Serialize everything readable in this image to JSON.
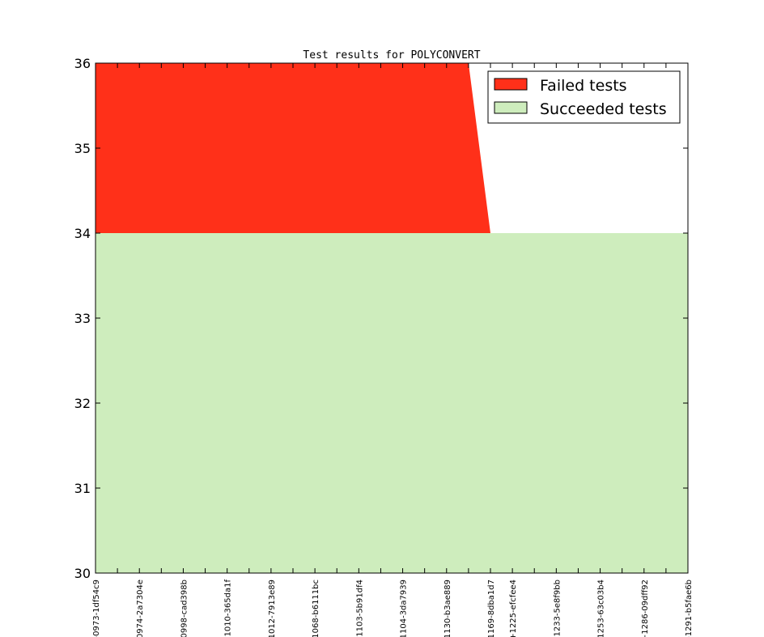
{
  "chart_data": {
    "type": "area",
    "title": "Test results for POLYCONVERT",
    "xlabel": "",
    "ylabel": "",
    "ylim": [
      30,
      36
    ],
    "yticks": [
      30,
      31,
      32,
      33,
      34,
      35,
      36
    ],
    "grid": false,
    "legend_position": "top-right",
    "categories": [
      "-0973-1df54c9",
      "",
      "0974-2a7304e",
      "",
      "0998-cad398b",
      "",
      "-1010-365da1f",
      "",
      "1012-7913e89",
      "",
      "1068-b6111bc",
      "",
      "-1103-5b91df4",
      "",
      "1104-3da7939",
      "",
      "1130-b3ae889",
      "",
      "1169-8dba1d7",
      "+1225-efcfee4",
      "",
      "-1233-5e8f9bb",
      "",
      "1253-63c03b4",
      "",
      "+1286-09dff92",
      "",
      "-1291-b5fae6b"
    ],
    "series": [
      {
        "name": "Failed tests",
        "color": "#ff3019",
        "values": [
          2,
          2,
          2,
          2,
          2,
          2,
          2,
          2,
          2,
          2,
          2,
          2,
          2,
          2,
          2,
          2,
          2,
          2,
          0,
          0,
          0,
          0,
          0,
          0,
          0,
          0,
          0,
          0
        ]
      },
      {
        "name": "Succeeded tests",
        "color": "#ceedbd",
        "values": [
          34,
          34,
          34,
          34,
          34,
          34,
          34,
          34,
          34,
          34,
          34,
          34,
          34,
          34,
          34,
          34,
          34,
          34,
          34,
          34,
          34,
          34,
          34,
          34,
          34,
          34,
          34,
          34
        ]
      }
    ]
  }
}
